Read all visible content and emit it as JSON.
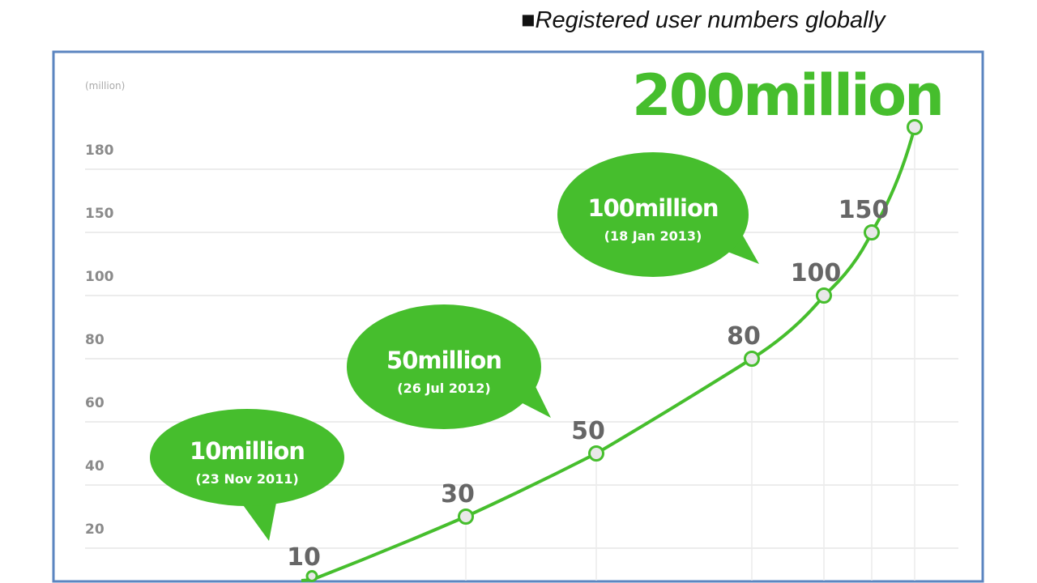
{
  "chart_data": {
    "type": "line",
    "title": "■Registered user numbers globally",
    "ylabel": "(million)",
    "y_ticks": [
      180,
      150,
      100,
      80,
      60,
      40,
      20
    ],
    "values": [
      10,
      30,
      50,
      80,
      100,
      150,
      200
    ],
    "data_labels": [
      "10",
      "30",
      "50",
      "80",
      "100",
      "150",
      ""
    ],
    "headline": "200million",
    "grid": true,
    "line_color": "#46be2d",
    "frame_color": "#5b85c0",
    "annotations": [
      {
        "title": "10million",
        "date": "(23 Nov 2011)",
        "value": 10
      },
      {
        "title": "50million",
        "date": "(26 Jul 2012)",
        "value": 50
      },
      {
        "title": "100million",
        "date": "(18 Jan 2013)",
        "value": 100
      }
    ]
  }
}
